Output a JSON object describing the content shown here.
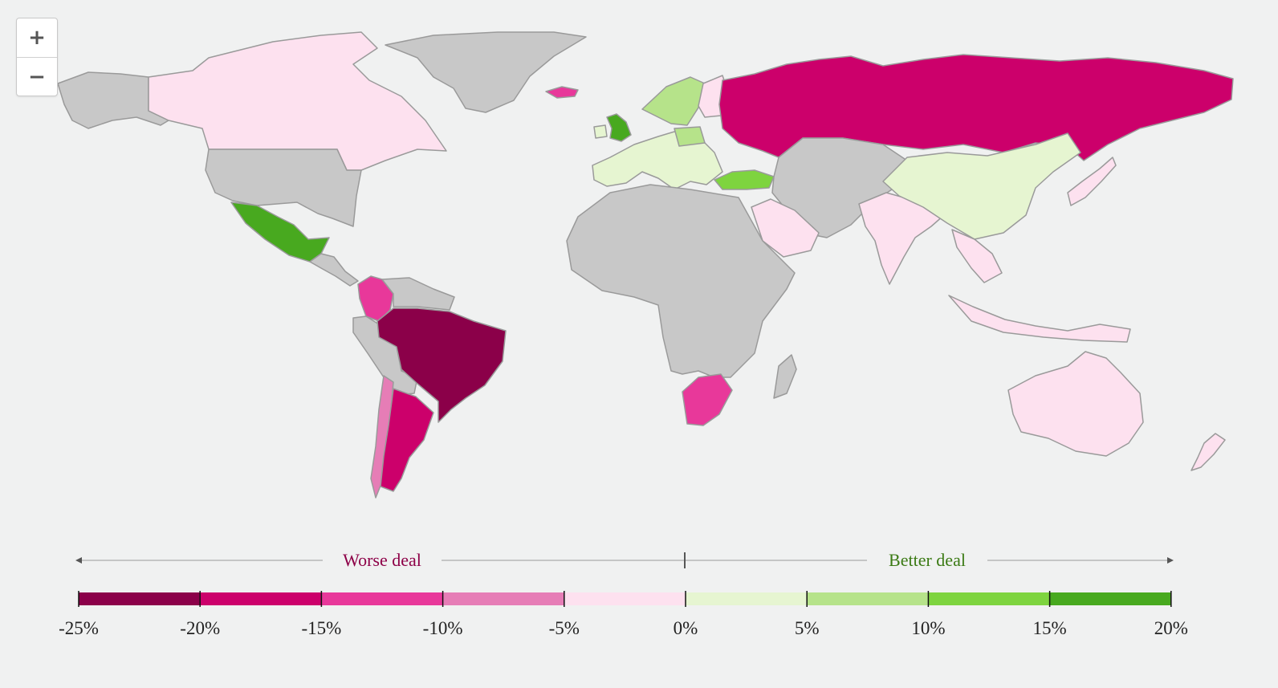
{
  "zoom": {
    "in_label": "+",
    "out_label": "−"
  },
  "colors": {
    "ocean": "#f0f1f1",
    "no_data": "#c8c8c8",
    "border": "#9a9a9a",
    "worse_text": "#8d0047",
    "better_text": "#3b7a14"
  },
  "legend": {
    "worse_label": "Worse deal",
    "better_label": "Better deal",
    "ticks": [
      "-25%",
      "-20%",
      "-15%",
      "-10%",
      "-5%",
      "0%",
      "5%",
      "10%",
      "15%",
      "20%"
    ],
    "bins": [
      {
        "from": -25,
        "to": -20,
        "color": "#8b0049"
      },
      {
        "from": -20,
        "to": -15,
        "color": "#cc006b"
      },
      {
        "from": -15,
        "to": -10,
        "color": "#e8389a"
      },
      {
        "from": -10,
        "to": -5,
        "color": "#e67db6"
      },
      {
        "from": -5,
        "to": 0,
        "color": "#fde1ef"
      },
      {
        "from": 0,
        "to": 5,
        "color": "#e6f5d1"
      },
      {
        "from": 5,
        "to": 10,
        "color": "#b6e38a"
      },
      {
        "from": 10,
        "to": 15,
        "color": "#7ed43f"
      },
      {
        "from": 15,
        "to": 20,
        "color": "#48a91f"
      }
    ]
  },
  "map": {
    "regions": [
      {
        "name": "alaska",
        "fill": "#c8c8c8"
      },
      {
        "name": "canada",
        "fill": "#fde1ef"
      },
      {
        "name": "greenland",
        "fill": "#c8c8c8"
      },
      {
        "name": "usa",
        "fill": "#c8c8c8"
      },
      {
        "name": "mexico",
        "fill": "#48a91f"
      },
      {
        "name": "central-america",
        "fill": "#c8c8c8"
      },
      {
        "name": "colombia",
        "fill": "#e8389a"
      },
      {
        "name": "venezuela",
        "fill": "#c8c8c8"
      },
      {
        "name": "brazil",
        "fill": "#8b0049"
      },
      {
        "name": "peru-bolivia",
        "fill": "#c8c8c8"
      },
      {
        "name": "chile",
        "fill": "#e67db6"
      },
      {
        "name": "argentina",
        "fill": "#cc006b"
      },
      {
        "name": "iceland",
        "fill": "#e8389a"
      },
      {
        "name": "united-kingdom",
        "fill": "#48a91f"
      },
      {
        "name": "ireland",
        "fill": "#e6f5d1"
      },
      {
        "name": "norway-sweden",
        "fill": "#b6e38a"
      },
      {
        "name": "finland",
        "fill": "#fde1ef"
      },
      {
        "name": "western-europe",
        "fill": "#e6f5d1"
      },
      {
        "name": "poland",
        "fill": "#b6e38a"
      },
      {
        "name": "russia",
        "fill": "#cc006b"
      },
      {
        "name": "turkey",
        "fill": "#7ed43f"
      },
      {
        "name": "africa",
        "fill": "#c8c8c8"
      },
      {
        "name": "madagascar",
        "fill": "#c8c8c8"
      },
      {
        "name": "south-africa",
        "fill": "#e8389a"
      },
      {
        "name": "saudi-arabia",
        "fill": "#fde1ef"
      },
      {
        "name": "central-asia-middle-east",
        "fill": "#c8c8c8"
      },
      {
        "name": "india",
        "fill": "#fde1ef"
      },
      {
        "name": "china",
        "fill": "#e6f5d1"
      },
      {
        "name": "southeast-asia",
        "fill": "#fde1ef"
      },
      {
        "name": "japan",
        "fill": "#fde1ef"
      },
      {
        "name": "indonesia",
        "fill": "#fde1ef"
      },
      {
        "name": "australia",
        "fill": "#fde1ef"
      },
      {
        "name": "new-zealand",
        "fill": "#fde1ef"
      }
    ]
  }
}
